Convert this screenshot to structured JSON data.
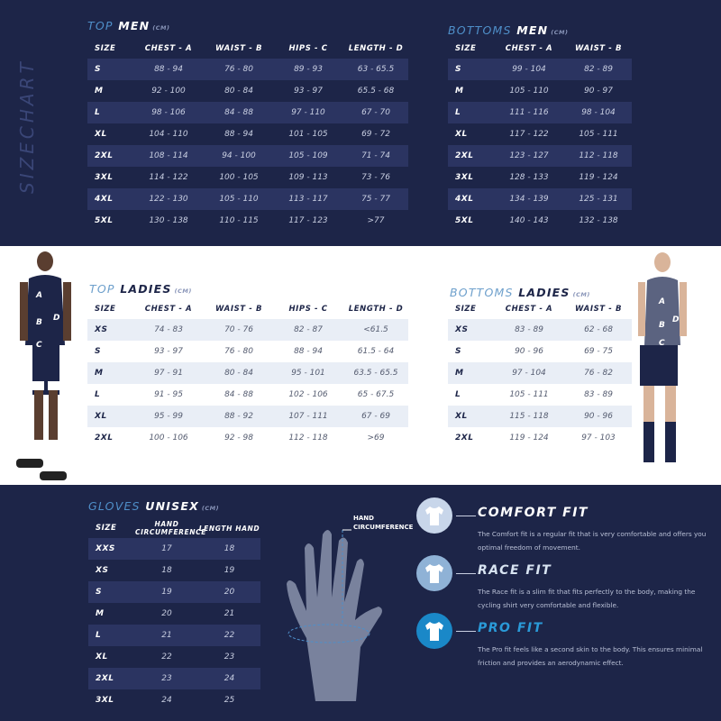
{
  "side_label": "SIZECHART",
  "top_men": {
    "title_a": "TOP",
    "title_b": "MEN",
    "unit": "(CM)",
    "headers": [
      "SIZE",
      "CHEST - A",
      "WAIST - B",
      "HIPS - C",
      "LENGTH  - D"
    ],
    "rows": [
      [
        "S",
        "88 - 94",
        "76 - 80",
        "89 - 93",
        "63 - 65.5"
      ],
      [
        "M",
        "92 - 100",
        "80 - 84",
        "93 - 97",
        "65.5 - 68"
      ],
      [
        "L",
        "98 - 106",
        "84 - 88",
        "97 - 110",
        "67 - 70"
      ],
      [
        "XL",
        "104 - 110",
        "88 - 94",
        "101 - 105",
        "69 - 72"
      ],
      [
        "2XL",
        "108 - 114",
        "94 - 100",
        "105 - 109",
        "71 - 74"
      ],
      [
        "3XL",
        "114 - 122",
        "100 - 105",
        "109 - 113",
        "73 - 76"
      ],
      [
        "4XL",
        "122 - 130",
        "105 - 110",
        "113 - 117",
        "75 - 77"
      ],
      [
        "5XL",
        "130 - 138",
        "110 - 115",
        "117 - 123",
        ">77"
      ]
    ]
  },
  "bottoms_men": {
    "title_a": "BOTTOMS",
    "title_b": "MEN",
    "unit": "(CM)",
    "headers": [
      "SIZE",
      "CHEST - A",
      "WAIST - B"
    ],
    "rows": [
      [
        "S",
        "99 - 104",
        "82 - 89"
      ],
      [
        "M",
        "105 - 110",
        "90 - 97"
      ],
      [
        "L",
        "111 - 116",
        "98 - 104"
      ],
      [
        "XL",
        "117 - 122",
        "105 - 111"
      ],
      [
        "2XL",
        "123 - 127",
        "112 - 118"
      ],
      [
        "3XL",
        "128 - 133",
        "119 - 124"
      ],
      [
        "4XL",
        "134 - 139",
        "125 - 131"
      ],
      [
        "5XL",
        "140 - 143",
        "132 - 138"
      ]
    ]
  },
  "top_ladies": {
    "title_a": "TOP",
    "title_b": "LADIES",
    "unit": "(CM)",
    "headers": [
      "SIZE",
      "CHEST - A",
      "WAIST - B",
      "HIPS - C",
      "LENGTH  - D"
    ],
    "rows": [
      [
        "XS",
        "74 - 83",
        "70 - 76",
        "82 - 87",
        "<61.5"
      ],
      [
        "S",
        "93 - 97",
        "76 - 80",
        "88 - 94",
        "61.5 - 64"
      ],
      [
        "M",
        "97 - 91",
        "80 - 84",
        "95 - 101",
        "63.5 - 65.5"
      ],
      [
        "L",
        "91 - 95",
        "84 - 88",
        "102 - 106",
        "65 - 67.5"
      ],
      [
        "XL",
        "95 - 99",
        "88 - 92",
        "107 - 111",
        "67 - 69"
      ],
      [
        "2XL",
        "100 - 106",
        "92 - 98",
        "112 - 118",
        ">69"
      ]
    ]
  },
  "bottoms_ladies": {
    "title_a": "BOTTOMS",
    "title_b": "LADIES",
    "unit": "(CM)",
    "headers": [
      "SIZE",
      "CHEST - A",
      "WAIST - B"
    ],
    "rows": [
      [
        "XS",
        "83 - 89",
        "62 - 68"
      ],
      [
        "S",
        "90 - 96",
        "69 - 75"
      ],
      [
        "M",
        "97 - 104",
        "76 - 82"
      ],
      [
        "L",
        "105 - 111",
        "83 - 89"
      ],
      [
        "XL",
        "115 - 118",
        "90 - 96"
      ],
      [
        "2XL",
        "119 - 124",
        "97 - 103"
      ]
    ]
  },
  "gloves": {
    "title_a": "GLOVES",
    "title_b": "UNISEX",
    "unit": "(CM)",
    "headers": [
      "SIZE",
      "HAND CIRCUMFERENCE",
      "LENGTH HAND"
    ],
    "rows": [
      [
        "XXS",
        "17",
        "18"
      ],
      [
        "XS",
        "18",
        "19"
      ],
      [
        "S",
        "19",
        "20"
      ],
      [
        "M",
        "20",
        "21"
      ],
      [
        "L",
        "21",
        "22"
      ],
      [
        "XL",
        "22",
        "23"
      ],
      [
        "2XL",
        "23",
        "24"
      ],
      [
        "3XL",
        "24",
        "25"
      ]
    ],
    "hand_label": "HAND CIRCUMFERENCE"
  },
  "figure_labels": [
    "A",
    "B",
    "C",
    "D"
  ],
  "fits": [
    {
      "name": "COMFORT FIT",
      "desc": "The Comfort fit is a regular fit that is very comfortable and offers you optimal freedom of movement.",
      "color": "#c8d6ea",
      "name_color": "#ffffff"
    },
    {
      "name": "RACE FIT",
      "desc": "The Race fit is a slim fit that fits perfectly to the body, making the cycling shirt very comfortable and flexible.",
      "color": "#8fb2d6",
      "name_color": "#d8e4f2"
    },
    {
      "name": "PRO FIT",
      "desc": "The Pro fit feels like a second skin to the body. This ensures minimal friction and provides an aerodynamic effect.",
      "color": "#1a88c8",
      "name_color": "#2a9ad8"
    }
  ]
}
